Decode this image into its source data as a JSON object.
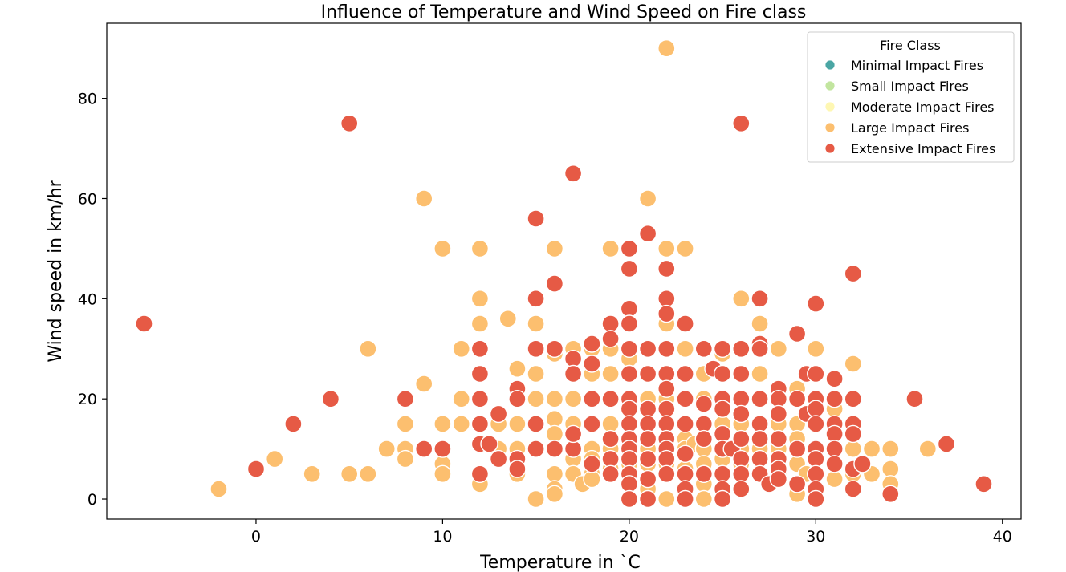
{
  "chart_data": {
    "type": "scatter",
    "title": "Influence of Temperature and Wind Speed on Fire class",
    "xlabel": "Temperature in `C",
    "ylabel": "Wind speed in km/hr",
    "xlim": [
      -8,
      41
    ],
    "ylim": [
      -4,
      95
    ],
    "xticks": [
      0,
      10,
      20,
      30,
      40
    ],
    "yticks": [
      0,
      20,
      40,
      60,
      80
    ],
    "grid": false,
    "legend": {
      "title": "Fire Class",
      "placement": "top-right",
      "entries": [
        {
          "name": "Minimal Impact Fires",
          "color": "#4aa6a4"
        },
        {
          "name": "Small Impact Fires",
          "color": "#c2e59f"
        },
        {
          "name": "Moderate Impact Fires",
          "color": "#fef7b3"
        },
        {
          "name": "Large Impact Fires",
          "color": "#fcbf6f"
        },
        {
          "name": "Extensive Impact Fires",
          "color": "#e65a45"
        }
      ]
    },
    "series": [
      {
        "name": "Large Impact Fires",
        "color": "#fcbf6f",
        "points": [
          [
            -2,
            2
          ],
          [
            1,
            8
          ],
          [
            3,
            5
          ],
          [
            5,
            5
          ],
          [
            6,
            5
          ],
          [
            6,
            30
          ],
          [
            7,
            10
          ],
          [
            8,
            10
          ],
          [
            8,
            15
          ],
          [
            8,
            8
          ],
          [
            9,
            10
          ],
          [
            9,
            23
          ],
          [
            9,
            60
          ],
          [
            10,
            15
          ],
          [
            10,
            7
          ],
          [
            10,
            5
          ],
          [
            10,
            50
          ],
          [
            11,
            15
          ],
          [
            11,
            20
          ],
          [
            11,
            30
          ],
          [
            12,
            40
          ],
          [
            12,
            50
          ],
          [
            12,
            35
          ],
          [
            12,
            3
          ],
          [
            13,
            10
          ],
          [
            13,
            15
          ],
          [
            13.5,
            36
          ],
          [
            14,
            26
          ],
          [
            14,
            15
          ],
          [
            14,
            10
          ],
          [
            14,
            5
          ],
          [
            15,
            35
          ],
          [
            15,
            25
          ],
          [
            15,
            20
          ],
          [
            15,
            15
          ],
          [
            15,
            0
          ],
          [
            16,
            50
          ],
          [
            16,
            29
          ],
          [
            16,
            20
          ],
          [
            16,
            16
          ],
          [
            16,
            13
          ],
          [
            16,
            5
          ],
          [
            16,
            2
          ],
          [
            16,
            1
          ],
          [
            17,
            30
          ],
          [
            17,
            20
          ],
          [
            17,
            15
          ],
          [
            17,
            8
          ],
          [
            17,
            5
          ],
          [
            17.5,
            3
          ],
          [
            18,
            30
          ],
          [
            18,
            25
          ],
          [
            18,
            20
          ],
          [
            18,
            15
          ],
          [
            18,
            10
          ],
          [
            18,
            8
          ],
          [
            18,
            5
          ],
          [
            18,
            4
          ],
          [
            19,
            50
          ],
          [
            19,
            30
          ],
          [
            19,
            25
          ],
          [
            19,
            20
          ],
          [
            19,
            15
          ],
          [
            19,
            10
          ],
          [
            19,
            6
          ],
          [
            19,
            5
          ],
          [
            20,
            35
          ],
          [
            20,
            28
          ],
          [
            20,
            25
          ],
          [
            20,
            15
          ],
          [
            20,
            12
          ],
          [
            20,
            8
          ],
          [
            20,
            7
          ],
          [
            20,
            5
          ],
          [
            21,
            60
          ],
          [
            21,
            30
          ],
          [
            21,
            25
          ],
          [
            21,
            20
          ],
          [
            21,
            15
          ],
          [
            21,
            12
          ],
          [
            21,
            10
          ],
          [
            21,
            7
          ],
          [
            21,
            2
          ],
          [
            22,
            90
          ],
          [
            22,
            50
          ],
          [
            22,
            35
          ],
          [
            22,
            30
          ],
          [
            22,
            25
          ],
          [
            22,
            20
          ],
          [
            22,
            15
          ],
          [
            22,
            10
          ],
          [
            22,
            7
          ],
          [
            22,
            0
          ],
          [
            23,
            50
          ],
          [
            23,
            30
          ],
          [
            23,
            25
          ],
          [
            23,
            20
          ],
          [
            23,
            15
          ],
          [
            23,
            12
          ],
          [
            23,
            10
          ],
          [
            23,
            6
          ],
          [
            23.5,
            11
          ],
          [
            24,
            30
          ],
          [
            24,
            25
          ],
          [
            24,
            20
          ],
          [
            24,
            15
          ],
          [
            24,
            10
          ],
          [
            24,
            7
          ],
          [
            24,
            5
          ],
          [
            24,
            3
          ],
          [
            24,
            0
          ],
          [
            25,
            29
          ],
          [
            25,
            15
          ],
          [
            25,
            10
          ],
          [
            25,
            8
          ],
          [
            25,
            5
          ],
          [
            25,
            2
          ],
          [
            26,
            40
          ],
          [
            26,
            30
          ],
          [
            26,
            20
          ],
          [
            26,
            15
          ],
          [
            26,
            10
          ],
          [
            26,
            7
          ],
          [
            26,
            5
          ],
          [
            27,
            35
          ],
          [
            27,
            25
          ],
          [
            27,
            15
          ],
          [
            27,
            10
          ],
          [
            27,
            5
          ],
          [
            28,
            30
          ],
          [
            28,
            20
          ],
          [
            28,
            15
          ],
          [
            28,
            12
          ],
          [
            28,
            10
          ],
          [
            28,
            8
          ],
          [
            28,
            5
          ],
          [
            29,
            22
          ],
          [
            29,
            15
          ],
          [
            29,
            12
          ],
          [
            29,
            7
          ],
          [
            29,
            1
          ],
          [
            29.5,
            5
          ],
          [
            30,
            30
          ],
          [
            30,
            20
          ],
          [
            30,
            15
          ],
          [
            30,
            10
          ],
          [
            30,
            5
          ],
          [
            31,
            18
          ],
          [
            31,
            10
          ],
          [
            31,
            4
          ],
          [
            32,
            27
          ],
          [
            32,
            15
          ],
          [
            32,
            10
          ],
          [
            32,
            5
          ],
          [
            33,
            10
          ],
          [
            33,
            5
          ],
          [
            34,
            10
          ],
          [
            34,
            6
          ],
          [
            34,
            3
          ],
          [
            36,
            10
          ]
        ]
      },
      {
        "name": "Extensive Impact Fires",
        "color": "#e65a45",
        "points": [
          [
            -6,
            35
          ],
          [
            0,
            6
          ],
          [
            2,
            15
          ],
          [
            4,
            20
          ],
          [
            5,
            75
          ],
          [
            8,
            20
          ],
          [
            9,
            10
          ],
          [
            10,
            10
          ],
          [
            12,
            30
          ],
          [
            12,
            25
          ],
          [
            12,
            20
          ],
          [
            12,
            15
          ],
          [
            12,
            11
          ],
          [
            12,
            5
          ],
          [
            12.5,
            11
          ],
          [
            13,
            8
          ],
          [
            13,
            17
          ],
          [
            14,
            22
          ],
          [
            14,
            20
          ],
          [
            14,
            8
          ],
          [
            14,
            6
          ],
          [
            15,
            56
          ],
          [
            15,
            40
          ],
          [
            15,
            30
          ],
          [
            15,
            15
          ],
          [
            15,
            10
          ],
          [
            16,
            43
          ],
          [
            16,
            30
          ],
          [
            16,
            10
          ],
          [
            17,
            65
          ],
          [
            17,
            28
          ],
          [
            17,
            25
          ],
          [
            17,
            10
          ],
          [
            17,
            13
          ],
          [
            18,
            31
          ],
          [
            18,
            27
          ],
          [
            18,
            20
          ],
          [
            18,
            15
          ],
          [
            18,
            7
          ],
          [
            19,
            35
          ],
          [
            19,
            32
          ],
          [
            19,
            20
          ],
          [
            19,
            12
          ],
          [
            19,
            8
          ],
          [
            19,
            5
          ],
          [
            20,
            50
          ],
          [
            20,
            46
          ],
          [
            20,
            38
          ],
          [
            20,
            35
          ],
          [
            20,
            30
          ],
          [
            20,
            25
          ],
          [
            20,
            20
          ],
          [
            20,
            18
          ],
          [
            20,
            15
          ],
          [
            20,
            12
          ],
          [
            20,
            10
          ],
          [
            20,
            8
          ],
          [
            20,
            5
          ],
          [
            20,
            3
          ],
          [
            20,
            0
          ],
          [
            21,
            53
          ],
          [
            21,
            30
          ],
          [
            21,
            25
          ],
          [
            21,
            18
          ],
          [
            21,
            15
          ],
          [
            21,
            12
          ],
          [
            21,
            8
          ],
          [
            21,
            4
          ],
          [
            21,
            0
          ],
          [
            22,
            46
          ],
          [
            22,
            40
          ],
          [
            22,
            37
          ],
          [
            22,
            30
          ],
          [
            22,
            25
          ],
          [
            22,
            22
          ],
          [
            22,
            18
          ],
          [
            22,
            15
          ],
          [
            22,
            12
          ],
          [
            22,
            10
          ],
          [
            22,
            8
          ],
          [
            22,
            5
          ],
          [
            23,
            35
          ],
          [
            23,
            25
          ],
          [
            23,
            20
          ],
          [
            23,
            15
          ],
          [
            23,
            9
          ],
          [
            23,
            5
          ],
          [
            23,
            2
          ],
          [
            23,
            0
          ],
          [
            24,
            30
          ],
          [
            24,
            19
          ],
          [
            24,
            15
          ],
          [
            24,
            12
          ],
          [
            24,
            5
          ],
          [
            24.5,
            26
          ],
          [
            25,
            30
          ],
          [
            25,
            25
          ],
          [
            25,
            20
          ],
          [
            25,
            18
          ],
          [
            25,
            13
          ],
          [
            25,
            10
          ],
          [
            25,
            5
          ],
          [
            25,
            2
          ],
          [
            25,
            0
          ],
          [
            25.5,
            10
          ],
          [
            26,
            75
          ],
          [
            26,
            30
          ],
          [
            26,
            25
          ],
          [
            26,
            20
          ],
          [
            26,
            17
          ],
          [
            26,
            12
          ],
          [
            26,
            8
          ],
          [
            26,
            5
          ],
          [
            26,
            2
          ],
          [
            27,
            40
          ],
          [
            27,
            31
          ],
          [
            27,
            30
          ],
          [
            27,
            20
          ],
          [
            27,
            15
          ],
          [
            27,
            12
          ],
          [
            27,
            8
          ],
          [
            27,
            5
          ],
          [
            27.5,
            3
          ],
          [
            28,
            22
          ],
          [
            28,
            20
          ],
          [
            28,
            17
          ],
          [
            28,
            12
          ],
          [
            28,
            8
          ],
          [
            28,
            6
          ],
          [
            28,
            4
          ],
          [
            29,
            33
          ],
          [
            29,
            20
          ],
          [
            29,
            10
          ],
          [
            29,
            3
          ],
          [
            29.5,
            25
          ],
          [
            29.5,
            17
          ],
          [
            30,
            39
          ],
          [
            30,
            25
          ],
          [
            30,
            20
          ],
          [
            30,
            18
          ],
          [
            30,
            15
          ],
          [
            30,
            10
          ],
          [
            30,
            8
          ],
          [
            30,
            5
          ],
          [
            30,
            2
          ],
          [
            30,
            0
          ],
          [
            31,
            24
          ],
          [
            31,
            20
          ],
          [
            31,
            15
          ],
          [
            31,
            13
          ],
          [
            31,
            10
          ],
          [
            31,
            7
          ],
          [
            32,
            45
          ],
          [
            32,
            20
          ],
          [
            32,
            15
          ],
          [
            32,
            13
          ],
          [
            32,
            6
          ],
          [
            32,
            2
          ],
          [
            32.5,
            7
          ],
          [
            34,
            1
          ],
          [
            35.3,
            20
          ],
          [
            37,
            11
          ],
          [
            39,
            3
          ]
        ]
      }
    ]
  }
}
